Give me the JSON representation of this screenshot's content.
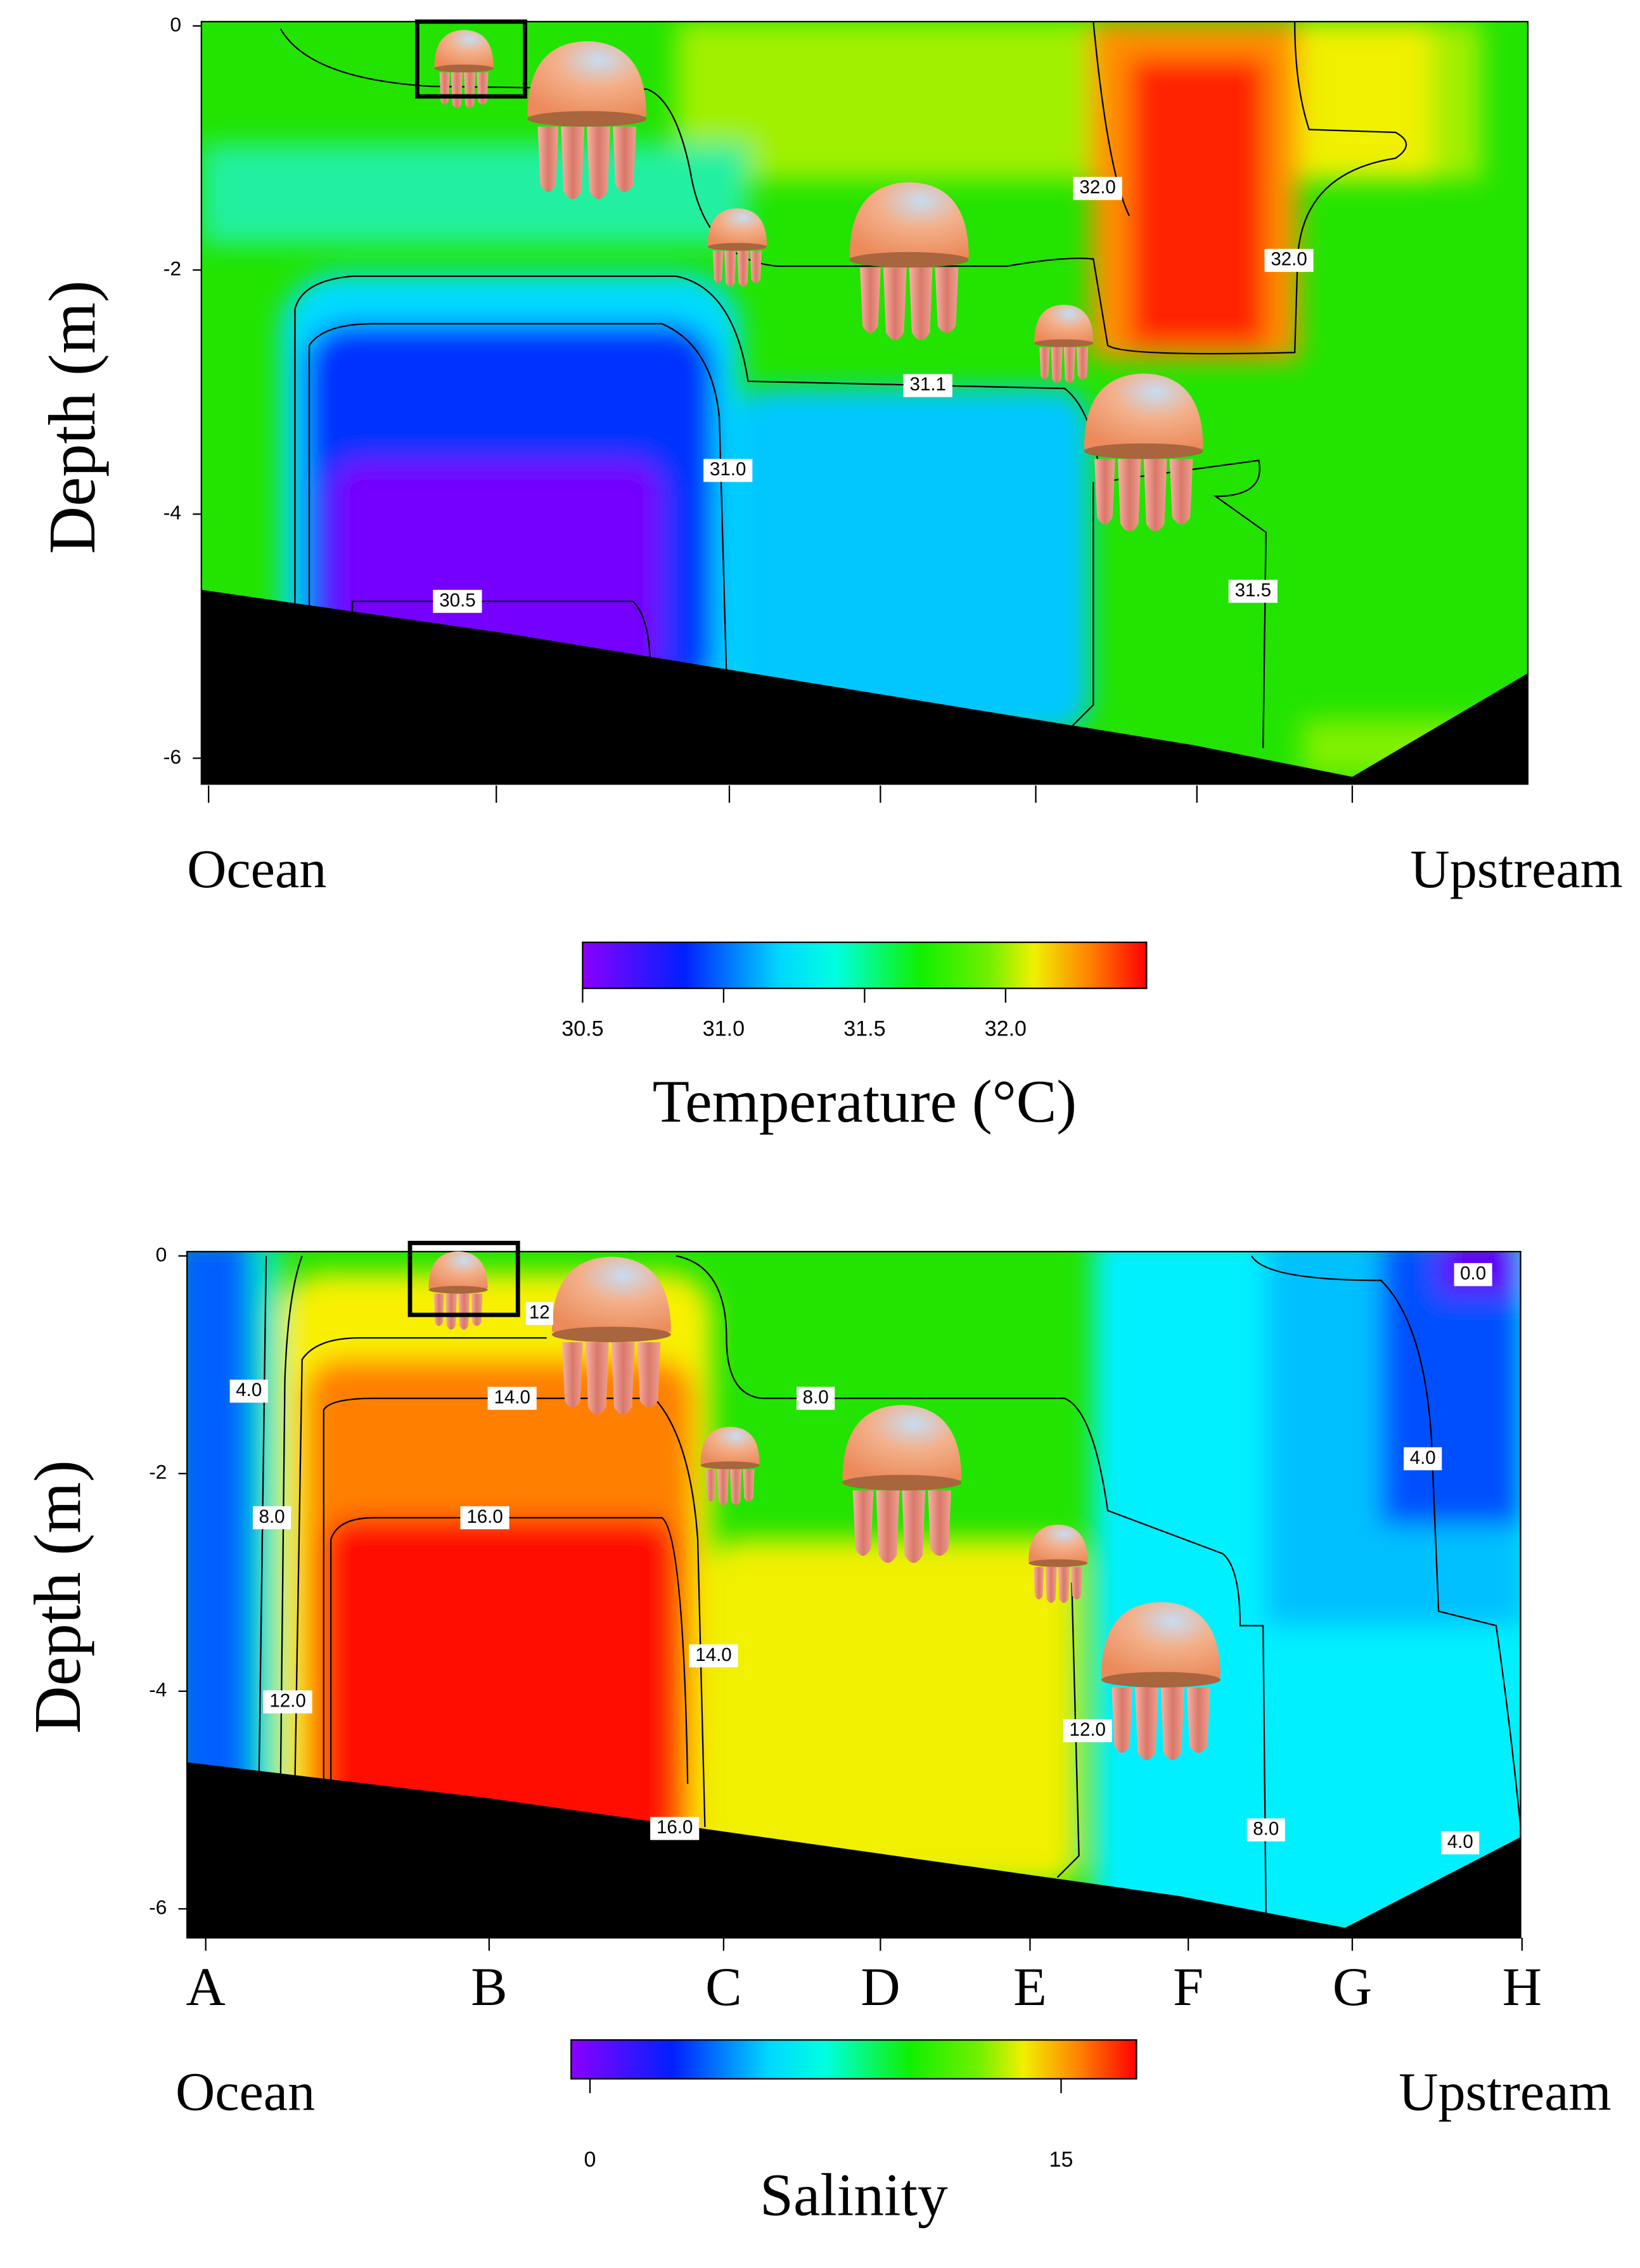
{
  "chart_data": [
    {
      "type": "contour",
      "title": "Temperature (°C)",
      "ylabel": "Depth (m)",
      "x_start_label": "Ocean",
      "x_end_label": "Upstream",
      "ylim": [
        -6.2,
        0
      ],
      "yticks": [
        0,
        -2,
        -4,
        -6
      ],
      "contour_labels": [
        {
          "value": 32.0,
          "label": "32.0"
        },
        {
          "value": 32.0,
          "label": "32.0"
        },
        {
          "value": 31.1,
          "label": "31.1"
        },
        {
          "value": 31.0,
          "label": "31.0"
        },
        {
          "value": 30.5,
          "label": "30.5"
        },
        {
          "value": 31.5,
          "label": "31.5"
        }
      ],
      "colorbar": {
        "lim": [
          30.5,
          32.5
        ],
        "ticks": [
          {
            "value": 30.5,
            "label": "30.5"
          },
          {
            "value": 31.0,
            "label": "31.0"
          },
          {
            "value": 31.5,
            "label": "31.5"
          },
          {
            "value": 32.0,
            "label": "32.0"
          }
        ]
      }
    },
    {
      "type": "contour",
      "title": "Salinity",
      "ylabel": "Depth (m)",
      "x_start_label": "Ocean",
      "x_end_label": "Upstream",
      "categories": [
        "A",
        "B",
        "C",
        "D",
        "E",
        "F",
        "G",
        "H"
      ],
      "ylim": [
        -6.2,
        0
      ],
      "yticks": [
        0,
        -2,
        -4,
        -6
      ],
      "contour_labels": [
        {
          "value": 12,
          "label": "12"
        },
        {
          "value": 0.0,
          "label": "0.0"
        },
        {
          "value": 4.0,
          "label": "4.0"
        },
        {
          "value": 14.0,
          "label": "14.0"
        },
        {
          "value": 8.0,
          "label": "8.0"
        },
        {
          "value": 4.0,
          "label": "4.0"
        },
        {
          "value": 16.0,
          "label": "16.0"
        },
        {
          "value": 8.0,
          "label": "8.0"
        },
        {
          "value": 14.0,
          "label": "14.0"
        },
        {
          "value": 12.0,
          "label": "12.0"
        },
        {
          "value": 12.0,
          "label": "12.0"
        },
        {
          "value": 8.0,
          "label": "8.0"
        },
        {
          "value": 16.0,
          "label": "16.0"
        },
        {
          "value": 4.0,
          "label": "4.0"
        }
      ],
      "colorbar": {
        "lim": [
          -0.6,
          17.4
        ],
        "ticks": [
          0,
          15
        ]
      }
    }
  ]
}
